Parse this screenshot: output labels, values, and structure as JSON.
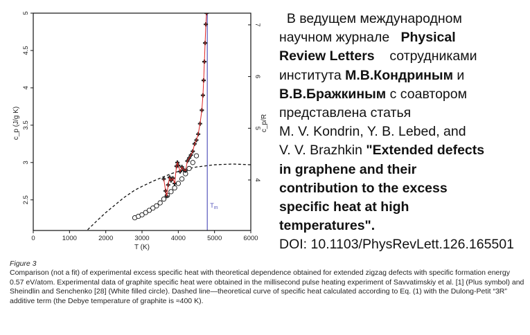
{
  "chart_data": {
    "type": "scatter",
    "title": "",
    "xlabel": "T (K)",
    "ylabel": "c_p (J/g K)",
    "y2label": "c_p/R",
    "xlim": [
      0,
      6000
    ],
    "ylim": [
      2.09,
      5
    ],
    "x_ticks": [
      "0",
      "1000",
      "2000",
      "3000",
      "4000",
      "5000",
      "6000"
    ],
    "y_ticks": [
      "2.5",
      "3",
      "3.5",
      "4",
      "4.5",
      "5"
    ],
    "y2_ticks": [
      "4",
      "5",
      "6",
      "7"
    ],
    "grid": false,
    "series": [
      {
        "name": "Savvatimskiy et al. (Plus symbol)",
        "color": "#222222",
        "line_color": "#dd2222",
        "x": [
          3600,
          3650,
          3680,
          3720,
          3760,
          3800,
          3850,
          3900,
          3950,
          3975,
          4000,
          4050,
          4100,
          4150,
          4200,
          4250,
          4300,
          4350,
          4400,
          4450,
          4500,
          4550,
          4600,
          4650,
          4680,
          4700,
          4720,
          4740,
          4760,
          4780
        ],
        "y": [
          2.78,
          2.62,
          2.55,
          2.7,
          2.8,
          2.76,
          2.79,
          2.72,
          2.95,
          3.0,
          2.96,
          2.88,
          2.94,
          2.9,
          2.89,
          3.02,
          3.06,
          3.1,
          3.15,
          3.25,
          3.3,
          3.38,
          3.52,
          3.7,
          3.9,
          4.1,
          4.35,
          4.6,
          4.85,
          5.0
        ]
      },
      {
        "name": "Sheindlin and Senchenko (White filled circle)",
        "x": [
          2800,
          2900,
          3000,
          3100,
          3200,
          3300,
          3400,
          3500,
          3600,
          3700,
          3800,
          3900,
          4000,
          4100,
          4200,
          4300,
          4400,
          4500
        ],
        "y": [
          2.26,
          2.28,
          2.3,
          2.33,
          2.36,
          2.39,
          2.42,
          2.46,
          2.51,
          2.56,
          2.61,
          2.66,
          2.72,
          2.78,
          2.85,
          2.92,
          3.0,
          3.09
        ]
      },
      {
        "name": "Theoretical curve (dashed)",
        "x": [
          1500,
          1800,
          2000,
          2300,
          2500,
          2800,
          3000,
          3300,
          3500,
          3800,
          4000,
          4300,
          4500,
          5000,
          5500,
          6000
        ],
        "y": [
          2.1,
          2.24,
          2.33,
          2.45,
          2.53,
          2.63,
          2.68,
          2.75,
          2.79,
          2.85,
          2.88,
          2.92,
          2.94,
          2.97,
          2.98,
          2.97
        ]
      }
    ],
    "annotations": [
      {
        "text": "T",
        "sub": "m",
        "x": 4800,
        "color": "#5555bb"
      }
    ]
  },
  "text_panel": {
    "lines": [
      [
        {
          "t": "  В ведущем международном"
        }
      ],
      [
        {
          "t": "научном журнале   "
        },
        {
          "t": "Physical",
          "b": true
        }
      ],
      [
        {
          "t": "Review Letters",
          "b": true
        },
        {
          "t": "    сотрудниками"
        }
      ],
      [
        {
          "t": "института "
        },
        {
          "t": "М.В.Кондриным",
          "b": true
        },
        {
          "t": " и"
        }
      ],
      [
        {
          "t": "В.В.Бражкиным",
          "b": true
        },
        {
          "t": " с соавтором"
        }
      ],
      [
        {
          "t": "представлена статья"
        }
      ],
      [
        {
          "t": "M. V. Kondrin, Y. B. Lebed, and"
        }
      ],
      [
        {
          "t": "V. V. Brazhkin "
        },
        {
          "t": "\"Extended defects",
          "b": true
        }
      ],
      [
        {
          "t": "in graphene and their",
          "b": true
        }
      ],
      [
        {
          "t": "contribution to the excess",
          "b": true
        }
      ],
      [
        {
          "t": "specific heat at high",
          "b": true
        }
      ],
      [
        {
          "t": "temperatures\".",
          "b": true
        }
      ],
      [
        {
          "t": "DOI: 10.1103/PhysRevLett.126.165501"
        }
      ]
    ]
  },
  "caption": {
    "label": "Figure 3",
    "text": "Comparison (not a fit) of experimental excess specific heat with theoretical dependence obtained for extended zigzag defects with specific formation energy 0.57  eV/atom. Experimental data of graphite specific heat were obtained in the millisecond pulse heating experiment of Savvatimskiy et al. [1] (Plus symbol) and Sheindlin and Senchenko [28] (White filled circle). Dashed line—theoretical curve of specific heat calculated according to Eq. (1) with the Dulong-Petit “3R” additive term (the Debye temperature of graphite is ≈400  K)."
  }
}
